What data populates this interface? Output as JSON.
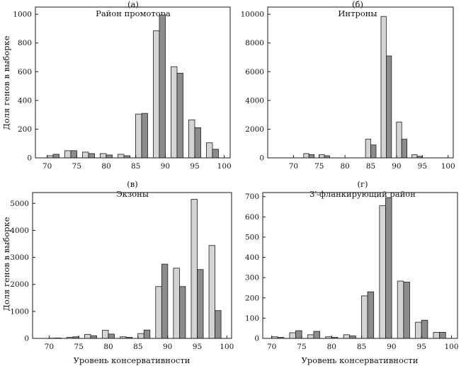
{
  "figure": {
    "ylabel_top": "Доля генов в выборке",
    "ylabel_bottom": "Доля генов в выборке",
    "xlabel_left": "Уровень консервативности",
    "xlabel_right": "Уровень консервативности"
  },
  "colors": {
    "series1_fill": "#d4d4d4",
    "series2_fill": "#8c8c8c",
    "stroke": "#1a1a1a"
  },
  "chart_data": [
    {
      "type": "bar",
      "letter": "(а)",
      "title": "Район промотора",
      "xlim": [
        68,
        101
      ],
      "ylim": [
        0,
        1050
      ],
      "xticks": [
        70,
        75,
        80,
        85,
        90,
        95,
        100
      ],
      "yticks": [
        0,
        200,
        400,
        600,
        800,
        1000
      ],
      "bin_centers": [
        71,
        74,
        77,
        80,
        83,
        86,
        89,
        92,
        95,
        98
      ],
      "series": [
        {
          "name": "series-1",
          "values": [
            15,
            50,
            40,
            30,
            25,
            305,
            885,
            635,
            265,
            105
          ]
        },
        {
          "name": "series-2",
          "values": [
            25,
            50,
            30,
            20,
            15,
            310,
            995,
            590,
            210,
            60
          ]
        }
      ]
    },
    {
      "type": "bar",
      "letter": "(б)",
      "title": "Интроны",
      "xlim": [
        65,
        101
      ],
      "ylim": [
        0,
        10500
      ],
      "xticks": [
        70,
        75,
        80,
        85,
        90,
        95,
        100
      ],
      "yticks": [
        0,
        2000,
        4000,
        6000,
        8000,
        10000
      ],
      "bin_centers": [
        73,
        76,
        79,
        82,
        85,
        88,
        91,
        94,
        97,
        100
      ],
      "series": [
        {
          "name": "series-1",
          "values": [
            300,
            230,
            0,
            0,
            1300,
            9850,
            2500,
            220,
            0,
            0
          ]
        },
        {
          "name": "series-2",
          "values": [
            230,
            150,
            0,
            0,
            900,
            7100,
            1300,
            110,
            0,
            0
          ]
        }
      ]
    },
    {
      "type": "bar",
      "letter": "(в)",
      "title": "Экзоны",
      "xlim": [
        67.2,
        100.8
      ],
      "ylim": [
        0,
        5400
      ],
      "xticks": [
        70,
        75,
        80,
        85,
        90,
        95,
        100
      ],
      "yticks": [
        0,
        1000,
        2000,
        3000,
        4000,
        5000
      ],
      "bin_centers": [
        71,
        74,
        77,
        80,
        83,
        86,
        89,
        92,
        95,
        98
      ],
      "series": [
        {
          "name": "series-1",
          "values": [
            10,
            40,
            150,
            300,
            60,
            180,
            1920,
            2600,
            5150,
            3440
          ]
        },
        {
          "name": "series-2",
          "values": [
            15,
            60,
            100,
            160,
            40,
            310,
            2750,
            1920,
            2550,
            1030
          ]
        }
      ]
    },
    {
      "type": "bar",
      "letter": "(г)",
      "title": "3′-фланкирующий район",
      "xlim": [
        68.5,
        101
      ],
      "ylim": [
        0,
        720
      ],
      "xticks": [
        70,
        75,
        80,
        85,
        90,
        95,
        100
      ],
      "yticks": [
        0,
        100,
        200,
        300,
        400,
        500,
        600,
        700
      ],
      "bin_centers": [
        71,
        74,
        77,
        80,
        83,
        86,
        89,
        92,
        95,
        98
      ],
      "series": [
        {
          "name": "series-1",
          "values": [
            8,
            28,
            18,
            8,
            18,
            210,
            655,
            283,
            80,
            30
          ]
        },
        {
          "name": "series-2",
          "values": [
            5,
            38,
            35,
            5,
            12,
            230,
            695,
            278,
            90,
            30
          ]
        }
      ]
    }
  ]
}
